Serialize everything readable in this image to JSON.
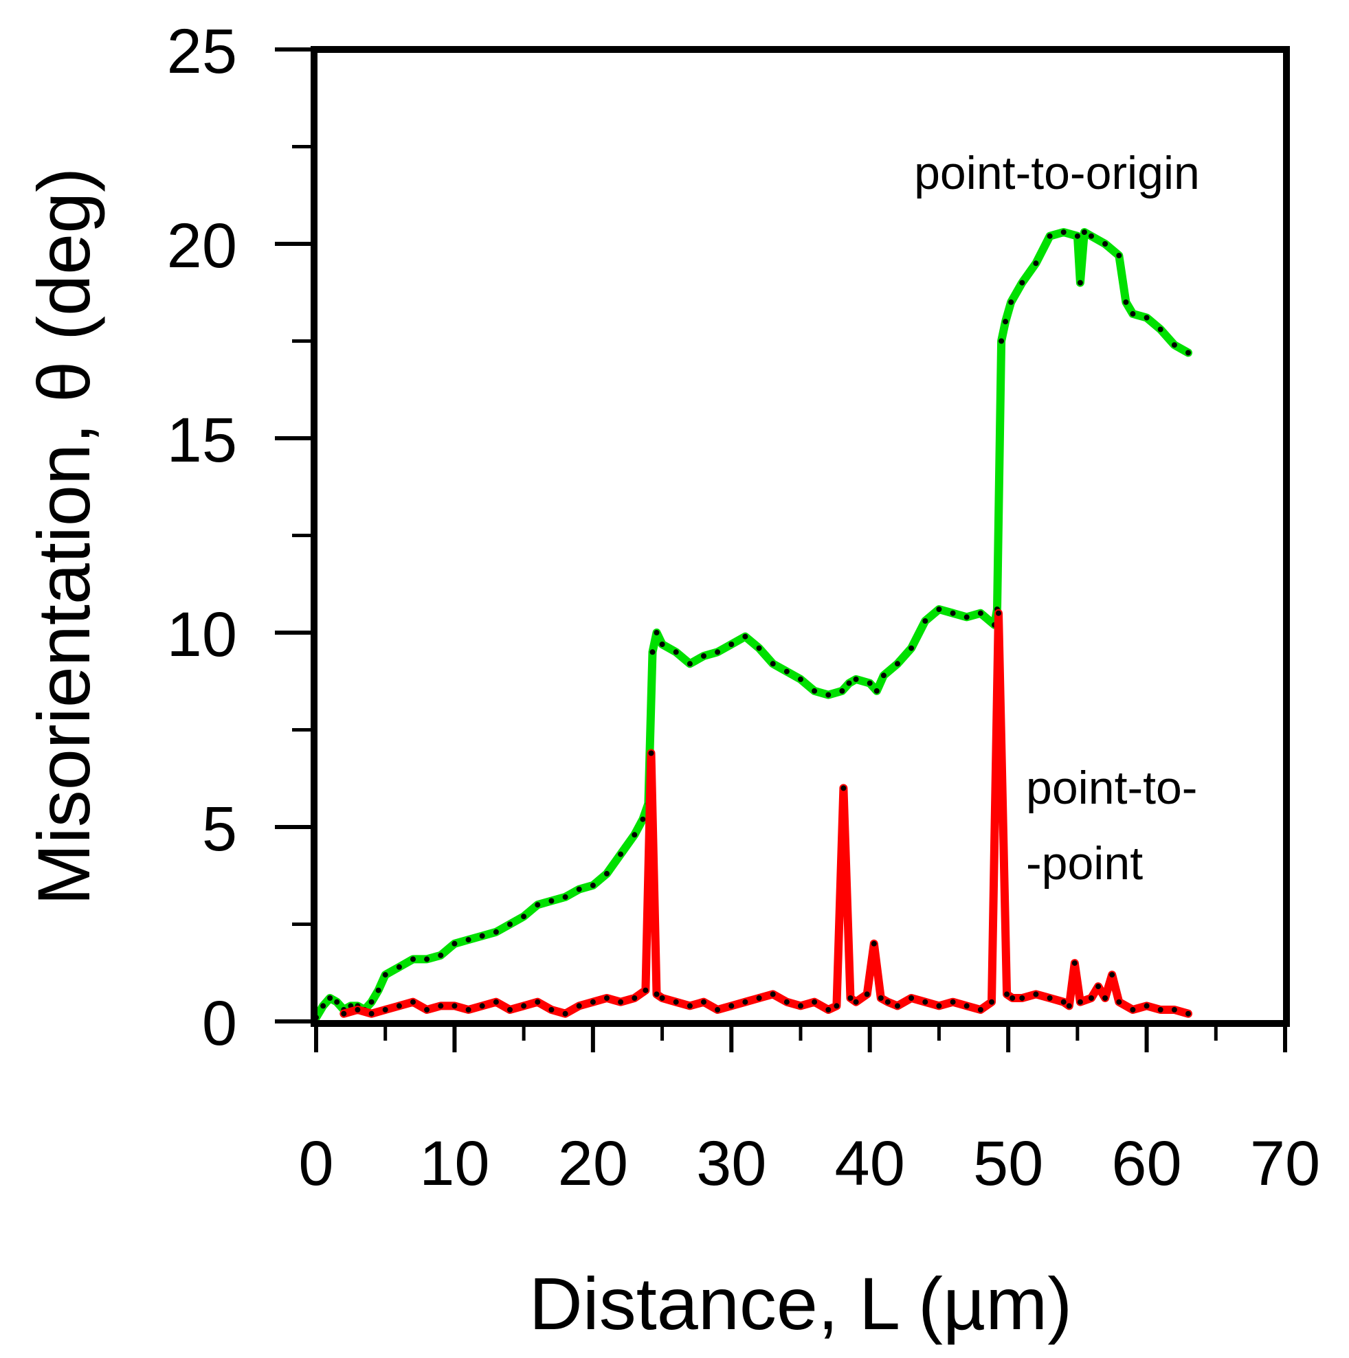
{
  "chart_data": {
    "type": "line",
    "title": "",
    "xlabel": "Distance, L (µm)",
    "ylabel": "Misorientation, θ (deg)",
    "xlim": [
      0,
      70
    ],
    "ylim": [
      0,
      25
    ],
    "x_ticks": [
      0,
      10,
      20,
      30,
      40,
      50,
      60,
      70
    ],
    "y_ticks": [
      0,
      5,
      10,
      15,
      20,
      25
    ],
    "grid": false,
    "annotations": [
      "point-to-origin",
      "point-to-",
      "-point"
    ],
    "series": [
      {
        "name": "point-to-origin",
        "color": "#00e000",
        "marker_color": "#000000",
        "x": [
          0,
          0.5,
          1,
          1.5,
          2,
          2.5,
          3,
          3.5,
          4,
          4.5,
          5,
          6,
          7,
          8,
          9,
          10,
          11,
          12,
          13,
          14,
          15,
          16,
          17,
          18,
          19,
          20,
          21,
          22,
          23,
          23.6,
          24,
          24.3,
          24.6,
          25,
          26,
          27,
          28,
          29,
          30,
          31,
          32,
          33,
          34,
          35,
          36,
          37,
          38,
          38.5,
          39,
          40,
          40.5,
          41,
          42,
          43,
          44,
          45,
          46,
          47,
          48,
          49,
          49.2,
          49.5,
          49.8,
          50.2,
          51,
          52,
          53,
          54,
          55,
          55.2,
          55.5,
          56,
          57,
          58,
          58.5,
          59,
          60,
          61,
          62,
          63
        ],
        "values": [
          0.1,
          0.4,
          0.6,
          0.5,
          0.3,
          0.4,
          0.4,
          0.3,
          0.5,
          0.8,
          1.2,
          1.4,
          1.6,
          1.6,
          1.7,
          2.0,
          2.1,
          2.2,
          2.3,
          2.5,
          2.7,
          3.0,
          3.1,
          3.2,
          3.4,
          3.5,
          3.8,
          4.3,
          4.8,
          5.2,
          5.6,
          9.5,
          10.0,
          9.7,
          9.5,
          9.2,
          9.4,
          9.5,
          9.7,
          9.9,
          9.6,
          9.2,
          9.0,
          8.8,
          8.5,
          8.4,
          8.5,
          8.7,
          8.8,
          8.7,
          8.5,
          8.9,
          9.2,
          9.6,
          10.3,
          10.6,
          10.5,
          10.4,
          10.5,
          10.2,
          10.6,
          17.5,
          18.0,
          18.5,
          19.0,
          19.5,
          20.2,
          20.3,
          20.2,
          19.0,
          20.3,
          20.2,
          20.0,
          19.7,
          18.5,
          18.2,
          18.1,
          17.8,
          17.4,
          17.2
        ],
        "linewidth": 12
      },
      {
        "name": "point-to-point",
        "color": "#ff0000",
        "marker_color": "#000000",
        "x": [
          2,
          3,
          4,
          5,
          6,
          7,
          8,
          9,
          10,
          11,
          12,
          13,
          14,
          15,
          16,
          17,
          18,
          19,
          20,
          21,
          22,
          23,
          23.8,
          24.2,
          24.6,
          25,
          26,
          27,
          28,
          29,
          30,
          31,
          32,
          33,
          34,
          35,
          36,
          37,
          37.6,
          38.1,
          38.6,
          39,
          39.8,
          40.3,
          40.8,
          41.3,
          42,
          43,
          44,
          45,
          46,
          47,
          48,
          48.8,
          49.3,
          49.9,
          50.3,
          51,
          52,
          53,
          54,
          54.4,
          54.8,
          55.2,
          56,
          56.5,
          57,
          57.5,
          58,
          59,
          60,
          61,
          62,
          63
        ],
        "values": [
          0.2,
          0.3,
          0.2,
          0.3,
          0.4,
          0.5,
          0.3,
          0.4,
          0.4,
          0.3,
          0.4,
          0.5,
          0.3,
          0.4,
          0.5,
          0.3,
          0.2,
          0.4,
          0.5,
          0.6,
          0.5,
          0.6,
          0.8,
          6.9,
          0.7,
          0.6,
          0.5,
          0.4,
          0.5,
          0.3,
          0.4,
          0.5,
          0.6,
          0.7,
          0.5,
          0.4,
          0.5,
          0.3,
          0.4,
          6.0,
          0.6,
          0.5,
          0.7,
          2.0,
          0.6,
          0.5,
          0.4,
          0.6,
          0.5,
          0.4,
          0.5,
          0.4,
          0.3,
          0.5,
          10.5,
          0.7,
          0.6,
          0.6,
          0.7,
          0.6,
          0.5,
          0.4,
          1.5,
          0.5,
          0.6,
          0.9,
          0.6,
          1.2,
          0.5,
          0.3,
          0.4,
          0.3,
          0.3,
          0.2
        ],
        "linewidth": 12
      }
    ]
  }
}
